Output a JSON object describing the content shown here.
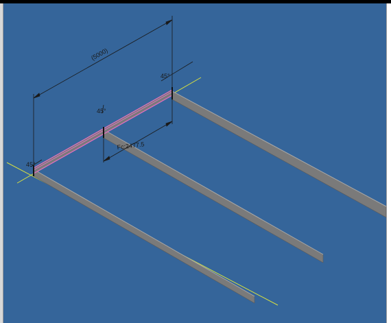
{
  "window": {
    "frame_color": "#000000"
  },
  "viewport": {
    "background": "#35659a",
    "beam_color": "#7a7a7a",
    "selection_color": "#e070c0",
    "axis_color": "#d8e040",
    "dimension_color": "#1a1a1a"
  },
  "dimensions": {
    "overall_length": "(5000)",
    "angle_top_right": "45°",
    "angle_middle": "45°",
    "angle_left": "45°",
    "offset_label": "Fc:2477.5"
  }
}
